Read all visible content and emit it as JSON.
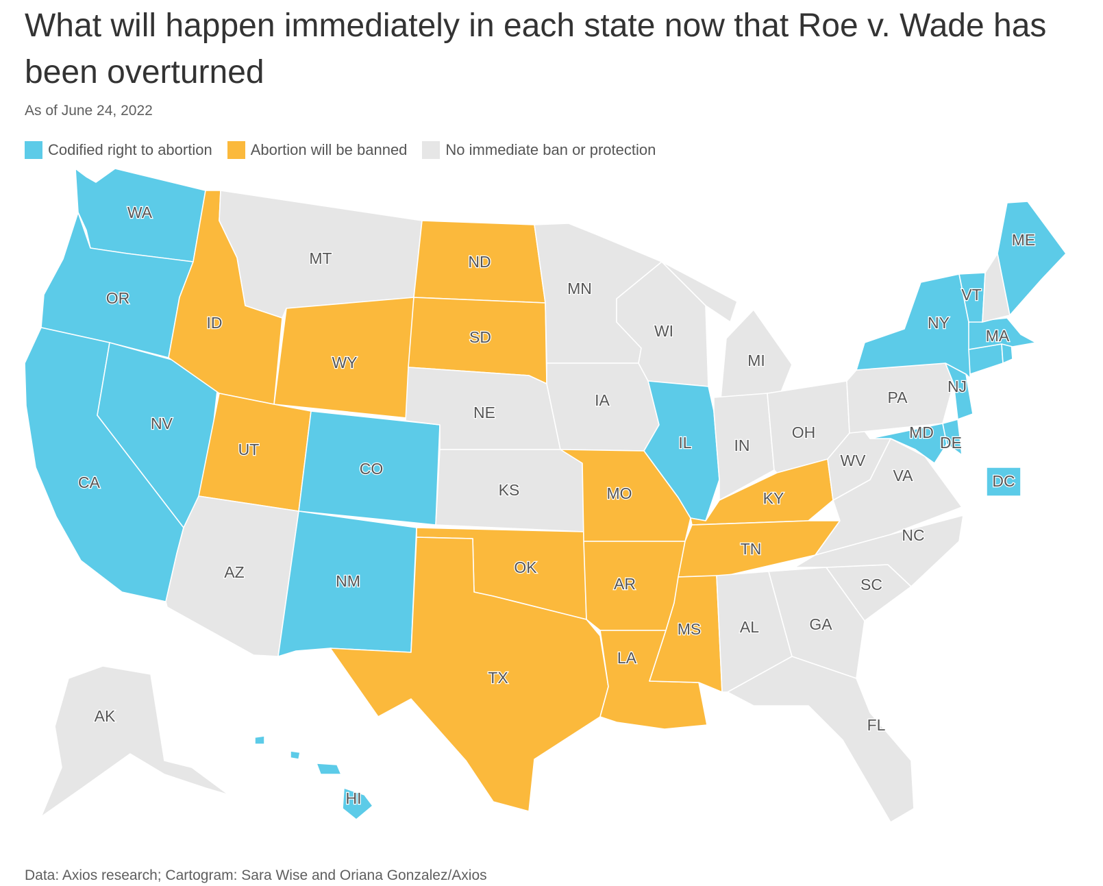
{
  "title": "What will happen immediately in each state now that Roe v. Wade has been overturned",
  "subtitle": "As of June 24, 2022",
  "legend": [
    {
      "key": "protected",
      "label": "Codified right to abortion",
      "color": "#5ccbe8"
    },
    {
      "key": "banned",
      "label": "Abortion will be banned",
      "color": "#fbb93c"
    },
    {
      "key": "none",
      "label": "No immediate ban or protection",
      "color": "#e6e6e6"
    }
  ],
  "source": "Data: Axios research; Cartogram: Sara Wise and Oriana Gonzalez/Axios",
  "states": {
    "WA": "protected",
    "OR": "protected",
    "CA": "protected",
    "NV": "protected",
    "CO": "protected",
    "NM": "protected",
    "IL": "protected",
    "NY": "protected",
    "VT": "protected",
    "ME": "protected",
    "MA": "protected",
    "CT": "protected",
    "RI": "protected",
    "NJ": "protected",
    "DE": "protected",
    "MD": "protected",
    "DC": "protected",
    "HI": "protected",
    "ID": "banned",
    "UT": "banned",
    "WY": "banned",
    "ND": "banned",
    "SD": "banned",
    "MO": "banned",
    "OK": "banned",
    "TX": "banned",
    "AR": "banned",
    "LA": "banned",
    "MS": "banned",
    "TN": "banned",
    "KY": "banned",
    "MT": "none",
    "MN": "none",
    "WI": "none",
    "MI": "none",
    "IA": "none",
    "NE": "none",
    "KS": "none",
    "AZ": "none",
    "IN": "none",
    "OH": "none",
    "PA": "none",
    "WV": "none",
    "VA": "none",
    "NC": "none",
    "SC": "none",
    "GA": "none",
    "AL": "none",
    "FL": "none",
    "NH": "none",
    "AK": "none"
  },
  "labels": {
    "WA": "WA",
    "OR": "OR",
    "CA": "CA",
    "NV": "NV",
    "ID": "ID",
    "MT": "MT",
    "WY": "WY",
    "UT": "UT",
    "AZ": "AZ",
    "CO": "CO",
    "NM": "NM",
    "ND": "ND",
    "SD": "SD",
    "NE": "NE",
    "KS": "KS",
    "OK": "OK",
    "TX": "TX",
    "MN": "MN",
    "IA": "IA",
    "MO": "MO",
    "AR": "AR",
    "LA": "LA",
    "WI": "WI",
    "IL": "IL",
    "MI": "MI",
    "IN": "IN",
    "OH": "OH",
    "KY": "KY",
    "TN": "TN",
    "MS": "MS",
    "AL": "AL",
    "GA": "GA",
    "FL": "FL",
    "SC": "SC",
    "NC": "NC",
    "VA": "VA",
    "WV": "WV",
    "PA": "PA",
    "NY": "NY",
    "NJ": "NJ",
    "MD": "MD",
    "DE": "DE",
    "VT": "VT",
    "MA": "MA",
    "ME": "ME",
    "DC": "DC",
    "AK": "AK",
    "HI": "HI"
  }
}
